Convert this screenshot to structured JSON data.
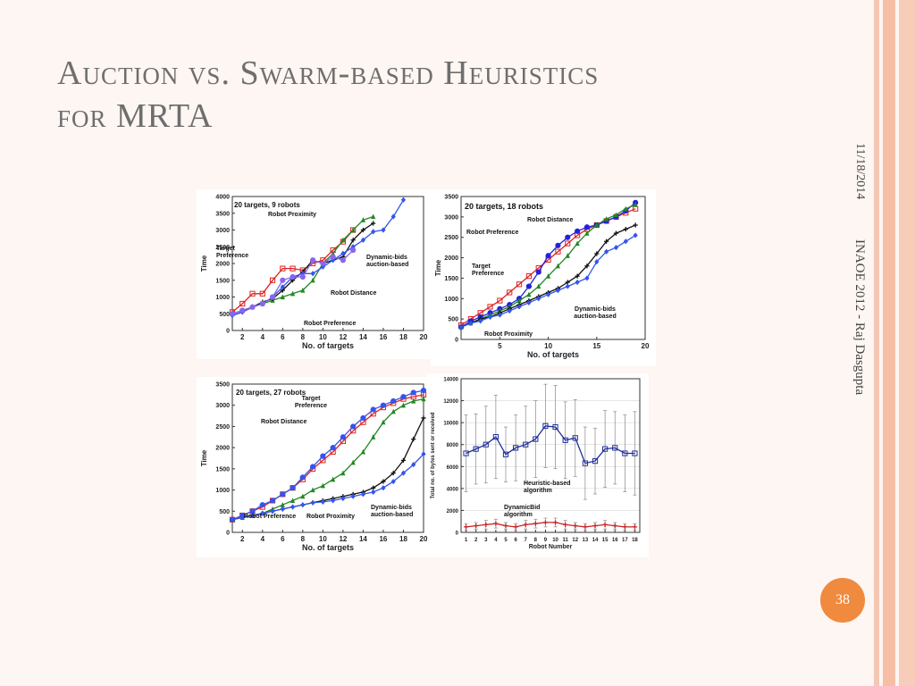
{
  "slide": {
    "title_line1": "Auction vs. Swarm-based Heuristics",
    "title_line2": "for MRTA",
    "date": "11/18/2014",
    "footer": "INAOE 2012 - Raj Dasgupta",
    "page_number": "38"
  },
  "chart_data": [
    {
      "type": "line",
      "title": "20 targets, 9 robots",
      "xlabel": "No. of targets",
      "ylabel": "Time",
      "xlim": [
        1,
        20
      ],
      "ylim": [
        0,
        4000
      ],
      "xticks": [
        2,
        4,
        6,
        8,
        10,
        12,
        14,
        16,
        18,
        20
      ],
      "yticks": [
        0,
        500,
        1000,
        1500,
        2000,
        2500,
        3000,
        3500,
        4000
      ],
      "annotations": [
        "Robot Proximity",
        "Target Preference",
        "Dynamic-bids auction-based",
        "Robot Distance",
        "Robot Preference"
      ],
      "series": [
        {
          "name": "Target Preference",
          "color": "#dd2222",
          "marker": "square",
          "x": [
            1,
            2,
            3,
            4,
            5,
            6,
            7,
            8,
            9,
            10,
            11,
            12,
            13
          ],
          "y": [
            550,
            800,
            1100,
            1100,
            1500,
            1850,
            1850,
            1800,
            2000,
            2100,
            2400,
            2650,
            3000
          ]
        },
        {
          "name": "Robot Proximity",
          "color": "#228822",
          "marker": "triangle",
          "x": [
            1,
            2,
            3,
            4,
            5,
            6,
            7,
            8,
            9,
            10,
            11,
            12,
            13,
            14,
            15
          ],
          "y": [
            500,
            600,
            700,
            800,
            900,
            1000,
            1100,
            1200,
            1500,
            2000,
            2300,
            2700,
            3000,
            3300,
            3400
          ]
        },
        {
          "name": "Dynamic-bids auction-based",
          "color": "#111111",
          "marker": "plus",
          "x": [
            1,
            2,
            3,
            4,
            5,
            6,
            7,
            8,
            9,
            10,
            11,
            12,
            13,
            14,
            15
          ],
          "y": [
            450,
            550,
            700,
            850,
            950,
            1200,
            1500,
            1750,
            2100,
            2000,
            2100,
            2200,
            2700,
            3000,
            3200
          ]
        },
        {
          "name": "Robot Distance",
          "color": "#3355ee",
          "marker": "diamond",
          "x": [
            1,
            2,
            3,
            4,
            5,
            6,
            7,
            8,
            9,
            10,
            11,
            12,
            13,
            14,
            15,
            16,
            17,
            18
          ],
          "y": [
            450,
            550,
            700,
            800,
            1000,
            1300,
            1600,
            1700,
            1700,
            1900,
            2100,
            2300,
            2500,
            2700,
            2950,
            3000,
            3400,
            3900
          ]
        },
        {
          "name": "Robot Preference",
          "color": "#8866ee",
          "marker": "circle",
          "x": [
            1,
            2,
            3,
            4,
            5,
            6,
            7,
            8,
            9,
            10,
            11,
            12,
            13
          ],
          "y": [
            500,
            600,
            700,
            800,
            1000,
            1500,
            1600,
            1600,
            2100,
            2000,
            2200,
            2100,
            2400
          ]
        }
      ]
    },
    {
      "type": "line",
      "title": "20 targets, 18 robots",
      "xlabel": "No. of targets",
      "ylabel": "Time",
      "xlim": [
        1,
        20
      ],
      "ylim": [
        0,
        3500
      ],
      "xticks": [
        5,
        10,
        15,
        20
      ],
      "yticks": [
        0,
        500,
        1000,
        1500,
        2000,
        2500,
        3000,
        3500
      ],
      "annotations": [
        "Robot Distance",
        "Robot Preference",
        "Target Preference",
        "Dynamic-bids auction-based",
        "Robot Proximity"
      ],
      "series": [
        {
          "name": "Robot Preference",
          "color": "#dd2222",
          "marker": "square",
          "x": [
            1,
            2,
            3,
            4,
            5,
            6,
            7,
            8,
            9,
            10,
            11,
            12,
            13,
            14,
            15,
            16,
            17,
            18,
            19
          ],
          "y": [
            350,
            500,
            650,
            800,
            950,
            1150,
            1350,
            1550,
            1750,
            1950,
            2150,
            2350,
            2550,
            2700,
            2800,
            2900,
            3000,
            3100,
            3200
          ]
        },
        {
          "name": "Robot Distance",
          "color": "#2222dd",
          "marker": "circle",
          "x": [
            1,
            2,
            3,
            4,
            5,
            6,
            7,
            8,
            9,
            10,
            11,
            12,
            13,
            14,
            15,
            16,
            17,
            18,
            19
          ],
          "y": [
            300,
            450,
            550,
            650,
            750,
            850,
            1000,
            1300,
            1650,
            2050,
            2300,
            2500,
            2650,
            2750,
            2800,
            2900,
            3000,
            3150,
            3350
          ]
        },
        {
          "name": "Target Preference",
          "color": "#228822",
          "marker": "triangle",
          "x": [
            1,
            2,
            3,
            4,
            5,
            6,
            7,
            8,
            9,
            10,
            11,
            12,
            13,
            14,
            15,
            16,
            17,
            18,
            19
          ],
          "y": [
            300,
            400,
            500,
            600,
            700,
            800,
            950,
            1100,
            1300,
            1550,
            1800,
            2050,
            2350,
            2600,
            2800,
            2950,
            3050,
            3200,
            3300
          ]
        },
        {
          "name": "Dynamic-bids auction-based",
          "color": "#111111",
          "marker": "plus",
          "x": [
            1,
            2,
            3,
            4,
            5,
            6,
            7,
            8,
            9,
            10,
            11,
            12,
            13,
            14,
            15,
            16,
            17,
            18,
            19
          ],
          "y": [
            300,
            400,
            500,
            550,
            650,
            750,
            850,
            950,
            1050,
            1150,
            1250,
            1400,
            1550,
            1800,
            2100,
            2400,
            2600,
            2700,
            2800
          ]
        },
        {
          "name": "Robot Proximity",
          "color": "#3355ee",
          "marker": "diamond",
          "x": [
            1,
            2,
            3,
            4,
            5,
            6,
            7,
            8,
            9,
            10,
            11,
            12,
            13,
            14,
            15,
            16,
            17,
            18,
            19
          ],
          "y": [
            300,
            400,
            450,
            550,
            600,
            700,
            800,
            900,
            1000,
            1100,
            1200,
            1300,
            1400,
            1500,
            1900,
            2150,
            2250,
            2400,
            2550
          ]
        }
      ]
    },
    {
      "type": "line",
      "title": "20 targets, 27 robots",
      "xlabel": "No. of targets",
      "ylabel": "Time",
      "xlim": [
        1,
        20
      ],
      "ylim": [
        0,
        3500
      ],
      "xticks": [
        2,
        4,
        6,
        8,
        10,
        12,
        14,
        16,
        18,
        20
      ],
      "yticks": [
        0,
        500,
        1000,
        1500,
        2000,
        2500,
        3000,
        3500
      ],
      "annotations": [
        "Target Preference",
        "Robot Distance",
        "Robot Preference",
        "Robot Proximity",
        "Dynamic-bids auction-based"
      ],
      "series": [
        {
          "name": "Target Preference",
          "color": "#dd2222",
          "marker": "square",
          "x": [
            1,
            2,
            3,
            4,
            5,
            6,
            7,
            8,
            9,
            10,
            11,
            12,
            13,
            14,
            15,
            16,
            17,
            18,
            19,
            20
          ],
          "y": [
            300,
            400,
            500,
            600,
            750,
            900,
            1050,
            1250,
            1500,
            1700,
            1900,
            2150,
            2400,
            2600,
            2800,
            2950,
            3050,
            3150,
            3200,
            3250
          ]
        },
        {
          "name": "Robot Distance",
          "color": "#3355ee",
          "marker": "circle",
          "x": [
            1,
            2,
            3,
            4,
            5,
            6,
            7,
            8,
            9,
            10,
            11,
            12,
            13,
            14,
            15,
            16,
            17,
            18,
            19,
            20
          ],
          "y": [
            300,
            400,
            500,
            650,
            750,
            900,
            1050,
            1300,
            1550,
            1800,
            2000,
            2250,
            2500,
            2700,
            2900,
            3000,
            3100,
            3200,
            3300,
            3350
          ]
        },
        {
          "name": "Robot Preference",
          "color": "#228822",
          "marker": "triangle",
          "x": [
            1,
            2,
            3,
            4,
            5,
            6,
            7,
            8,
            9,
            10,
            11,
            12,
            13,
            14,
            15,
            16,
            17,
            18,
            19,
            20
          ],
          "y": [
            300,
            350,
            400,
            450,
            550,
            650,
            750,
            850,
            1000,
            1100,
            1250,
            1400,
            1650,
            1900,
            2250,
            2600,
            2850,
            3000,
            3100,
            3150
          ]
        },
        {
          "name": "Dynamic-bids auction-based",
          "color": "#111111",
          "marker": "plus",
          "x": [
            1,
            2,
            3,
            4,
            5,
            6,
            7,
            8,
            9,
            10,
            11,
            12,
            13,
            14,
            15,
            16,
            17,
            18,
            19,
            20
          ],
          "y": [
            300,
            350,
            400,
            450,
            500,
            550,
            600,
            650,
            700,
            750,
            800,
            850,
            900,
            950,
            1050,
            1200,
            1400,
            1700,
            2200,
            2700
          ]
        },
        {
          "name": "Robot Proximity",
          "color": "#3355ee",
          "marker": "diamond",
          "x": [
            1,
            2,
            3,
            4,
            5,
            6,
            7,
            8,
            9,
            10,
            11,
            12,
            13,
            14,
            15,
            16,
            17,
            18,
            19,
            20
          ],
          "y": [
            300,
            350,
            400,
            450,
            500,
            550,
            600,
            650,
            700,
            720,
            750,
            800,
            850,
            900,
            950,
            1050,
            1200,
            1400,
            1600,
            1850
          ]
        }
      ]
    },
    {
      "type": "line",
      "xlabel": "Robot Number",
      "ylabel": "Total no. of bytes sent or received",
      "xlim": [
        0.5,
        18.5
      ],
      "ylim": [
        0,
        14000
      ],
      "xticks": [
        1,
        2,
        3,
        4,
        5,
        6,
        7,
        8,
        9,
        10,
        11,
        12,
        13,
        14,
        15,
        16,
        17,
        18
      ],
      "yticks": [
        0,
        2000,
        4000,
        6000,
        8000,
        10000,
        12000,
        14000
      ],
      "annotations": [
        "Heuristic-based algorithm",
        "DynamicBid algorithm"
      ],
      "series": [
        {
          "name": "Heuristic-based algorithm",
          "color": "#1f2f9a",
          "marker": "square",
          "error_bars": true,
          "x": [
            1,
            2,
            3,
            4,
            5,
            6,
            7,
            8,
            9,
            10,
            11,
            12,
            13,
            14,
            15,
            16,
            17,
            18
          ],
          "y": [
            7200,
            7600,
            8000,
            8700,
            7100,
            7700,
            8000,
            8500,
            9700,
            9600,
            8400,
            8600,
            6300,
            6500,
            7600,
            7700,
            7200,
            7200
          ],
          "yerr": [
            3500,
            3200,
            3500,
            3800,
            2500,
            3000,
            3500,
            3500,
            3800,
            3800,
            3500,
            3500,
            3300,
            3000,
            3500,
            3300,
            3500,
            3800
          ]
        },
        {
          "name": "DynamicBid algorithm",
          "color": "#cc2222",
          "marker": "plus",
          "error_bars": true,
          "x": [
            1,
            2,
            3,
            4,
            5,
            6,
            7,
            8,
            9,
            10,
            11,
            12,
            13,
            14,
            15,
            16,
            17,
            18
          ],
          "y": [
            500,
            600,
            700,
            800,
            600,
            500,
            700,
            800,
            900,
            900,
            700,
            600,
            500,
            600,
            700,
            600,
            500,
            500
          ],
          "yerr": [
            300,
            300,
            400,
            400,
            300,
            300,
            400,
            400,
            400,
            400,
            400,
            300,
            300,
            300,
            400,
            300,
            300,
            300
          ]
        }
      ]
    }
  ]
}
